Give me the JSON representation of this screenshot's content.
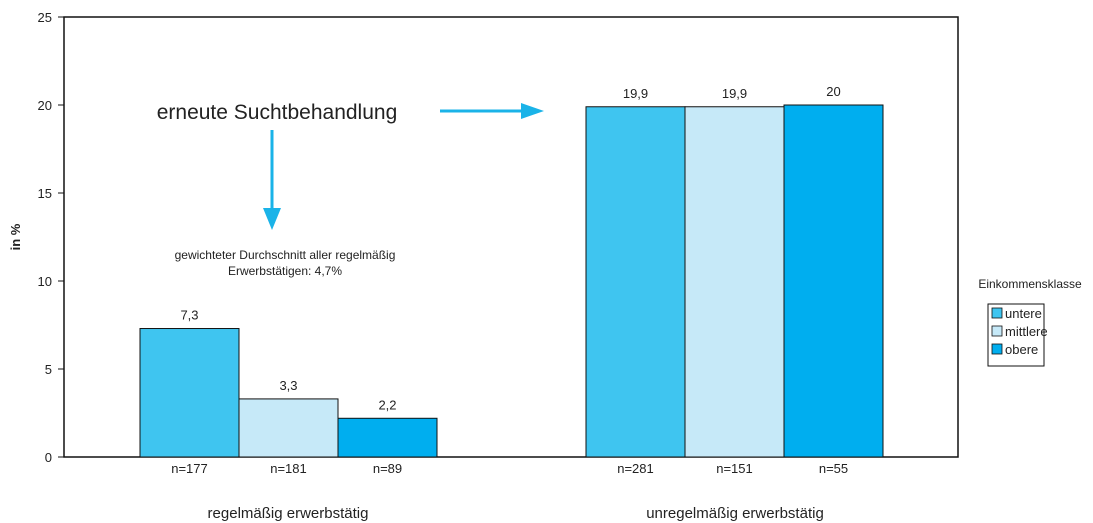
{
  "chart_data": {
    "type": "bar",
    "ylabel": "in %",
    "ylim": [
      0,
      25
    ],
    "yticks": [
      0,
      5,
      10,
      15,
      20,
      25
    ],
    "groups": [
      "regelmäßig erwerbstätig",
      "unregelmäßig erwerbstätig"
    ],
    "series": [
      {
        "name": "untere",
        "color": "#3fc5f0",
        "values": [
          7.3,
          19.9
        ],
        "value_labels": [
          "7,3",
          "19,9"
        ],
        "n_labels": [
          "n=177",
          "n=281"
        ]
      },
      {
        "name": "mittlere",
        "color": "#c6e9f8",
        "values": [
          3.3,
          19.9
        ],
        "value_labels": [
          "3,3",
          "19,9"
        ],
        "n_labels": [
          "n=181",
          "n=151"
        ]
      },
      {
        "name": "obere",
        "color": "#00aeef",
        "values": [
          2.2,
          20
        ],
        "value_labels": [
          "2,2",
          "20"
        ],
        "n_labels": [
          "n=89",
          "n=55"
        ]
      }
    ],
    "legend": {
      "title": "Einkommensklasse",
      "position": "right"
    },
    "annotations": {
      "main": "erneute Suchtbehandlung",
      "note_line1": "gewichteter Durchschnitt aller regelmäßig",
      "note_line2": "Erwerbstätigen: 4,7%"
    },
    "arrow_color": "#1ab3e8",
    "grid": false
  }
}
